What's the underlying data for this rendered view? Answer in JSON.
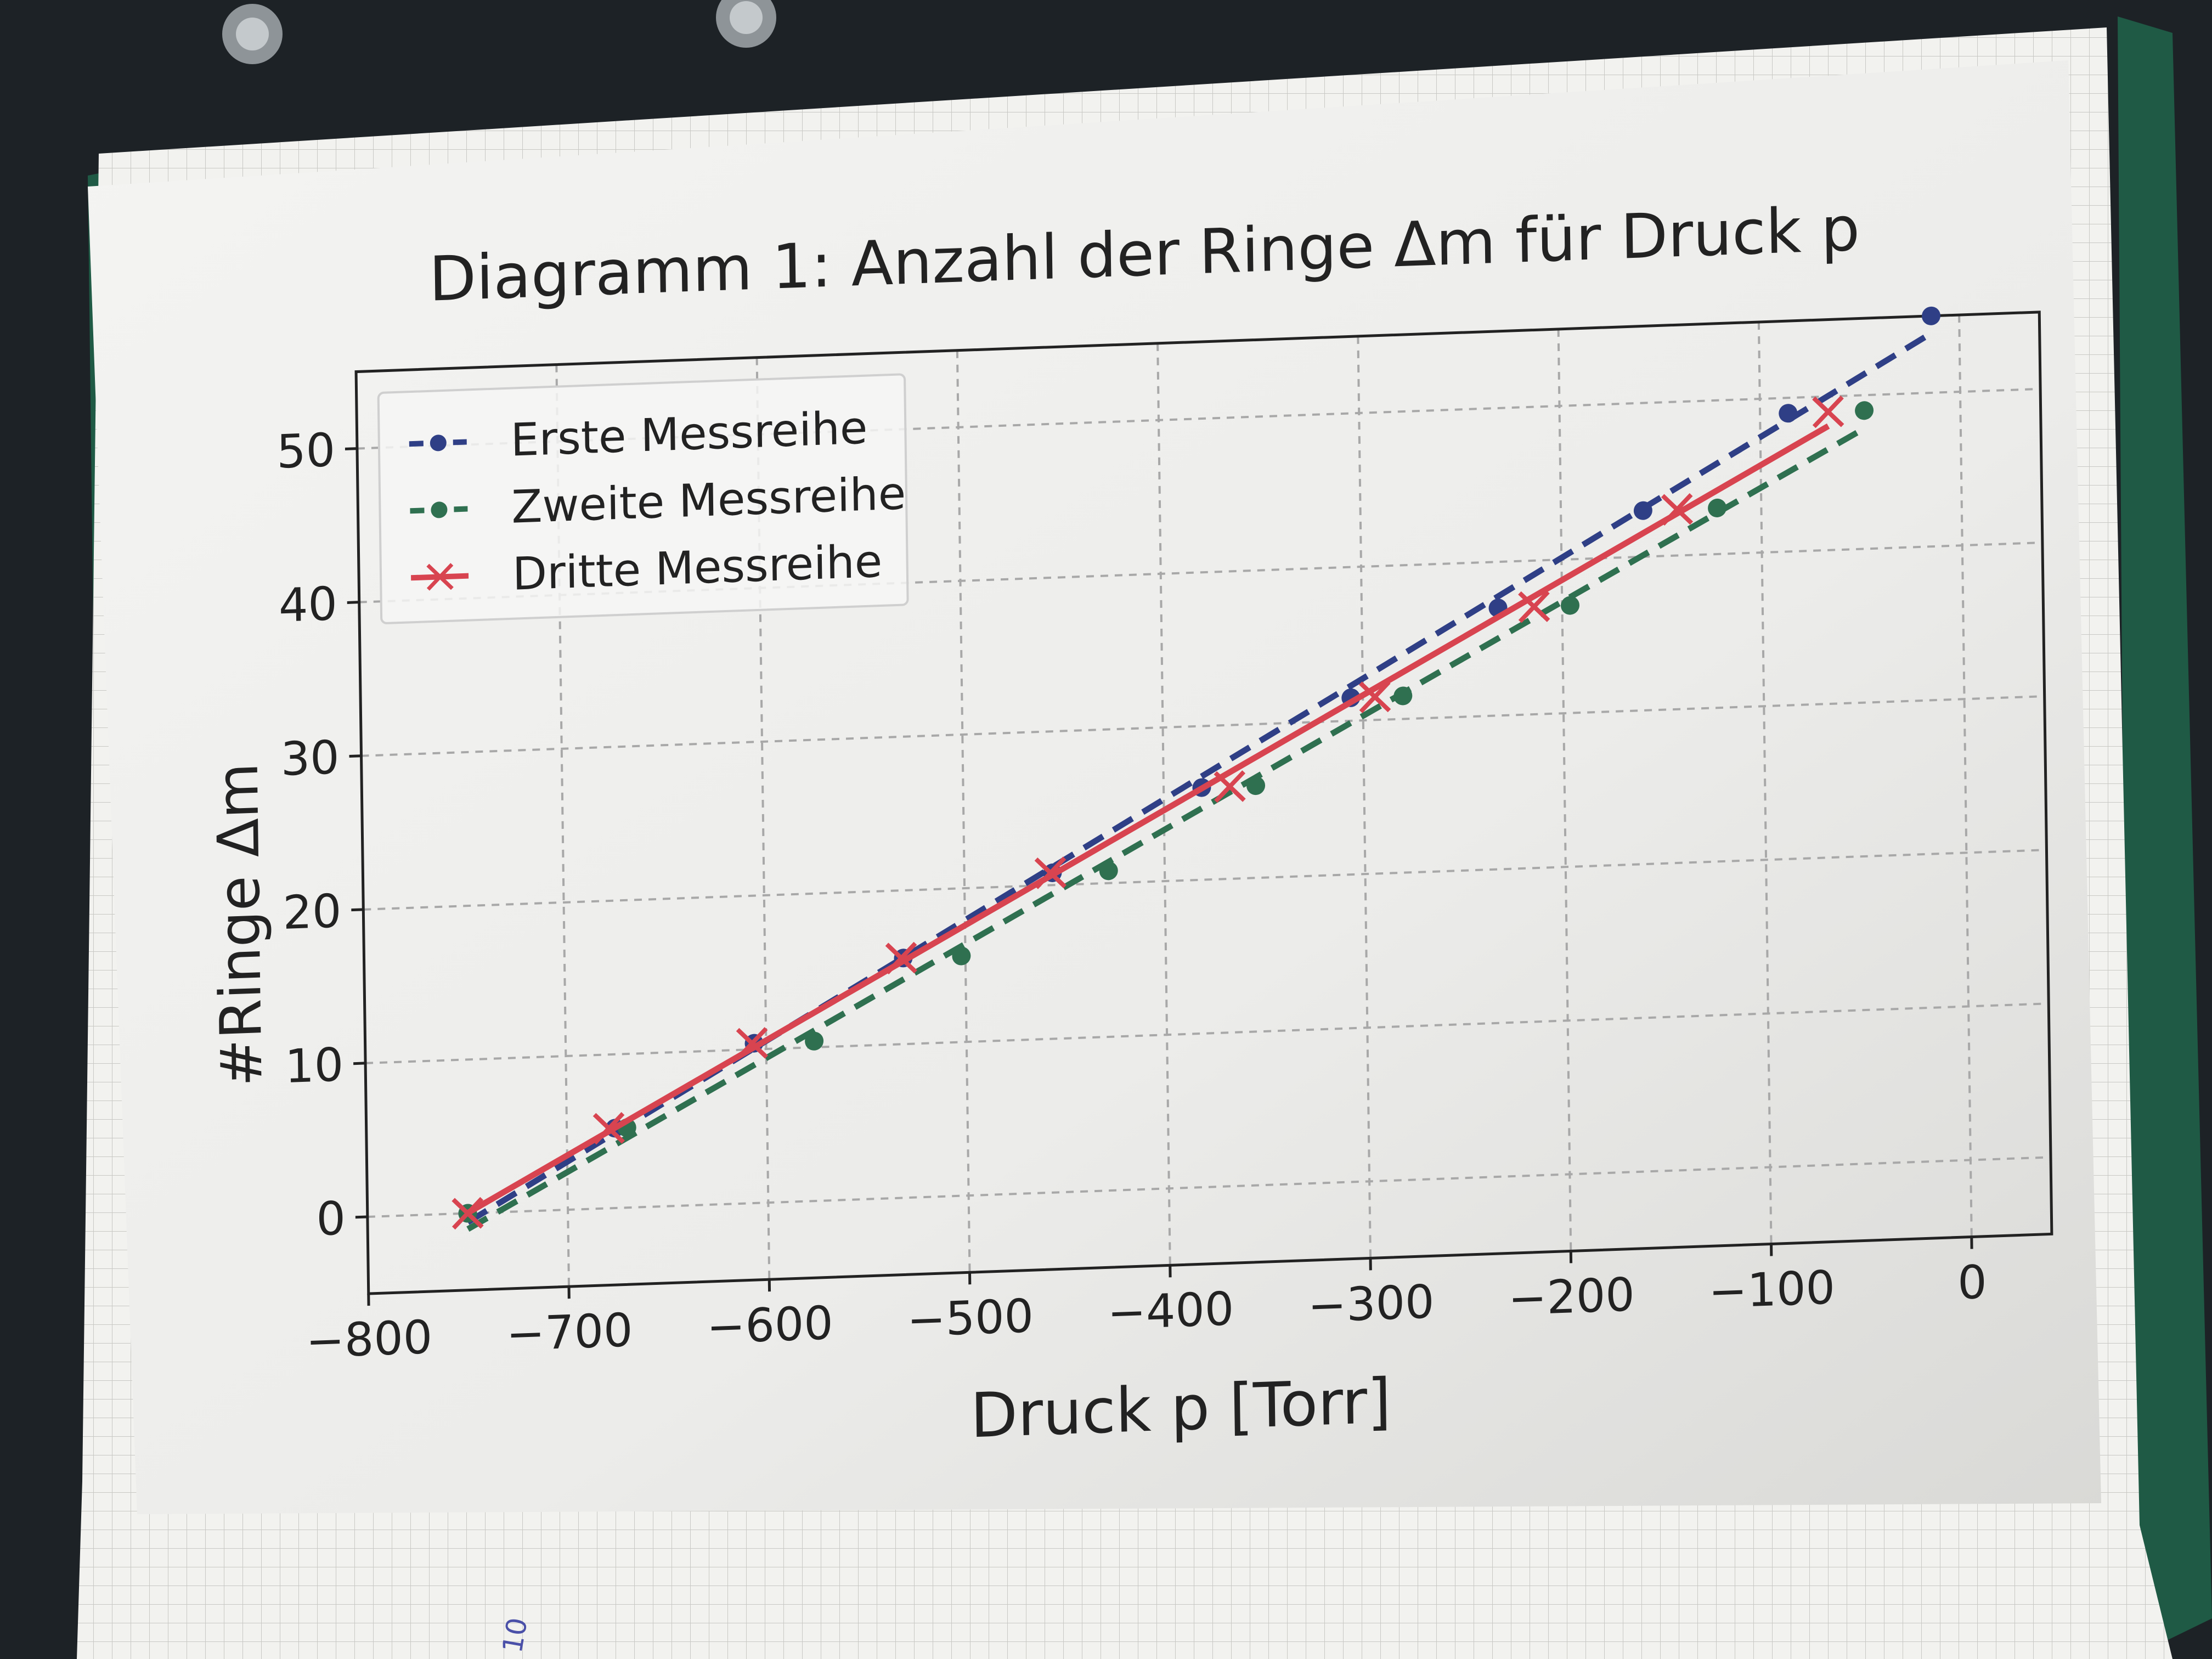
{
  "chart_data": {
    "type": "scatter",
    "title": "Diagramm 1: Anzahl der Ringe Δm für Druck p",
    "xlabel": "Druck p [Torr]",
    "ylabel": "#Ringe Δm",
    "xlim": [
      -800,
      40
    ],
    "ylim": [
      -5,
      55
    ],
    "xticks": [
      -800,
      -700,
      -600,
      -500,
      -400,
      -300,
      -200,
      -100,
      0
    ],
    "xtick_labels": [
      "−800",
      "−700",
      "−600",
      "−500",
      "−400",
      "−300",
      "−200",
      "−100",
      "0"
    ],
    "yticks": [
      0,
      10,
      20,
      30,
      40,
      50
    ],
    "ytick_labels": [
      "0",
      "10",
      "20",
      "30",
      "40",
      "50"
    ],
    "grid": true,
    "legend_position": "upper-left",
    "series": [
      {
        "name": "Erste Messreihe",
        "color": "#2f3f86",
        "marker": "dot",
        "fit": "dashed",
        "x": [
          -750,
          -676,
          -606,
          -531,
          -456,
          -381,
          -306,
          -232,
          -159,
          -86,
          -14
        ],
        "y": [
          0,
          5.2,
          10.4,
          15.6,
          20.8,
          26,
          31.5,
          37,
          43,
          49,
          55
        ]
      },
      {
        "name": "Zweite Messreihe",
        "color": "#2f7050",
        "marker": "dot",
        "fit": "dashed",
        "x": [
          -750,
          -670,
          -576,
          -502,
          -428,
          -354,
          -280,
          -196,
          -122,
          -48
        ],
        "y": [
          0,
          5.2,
          10.4,
          15.6,
          20.8,
          26,
          31.5,
          37,
          43,
          49
        ]
      },
      {
        "name": "Dritte Messreihe",
        "color": "#d84450",
        "marker": "x",
        "fit": "solid",
        "x": [
          -750,
          -679,
          -607,
          -532,
          -457,
          -367,
          -294,
          -214,
          -142,
          -66
        ],
        "y": [
          0,
          5.2,
          10.4,
          15.6,
          20.8,
          26,
          31.5,
          37,
          43,
          49
        ]
      }
    ]
  }
}
